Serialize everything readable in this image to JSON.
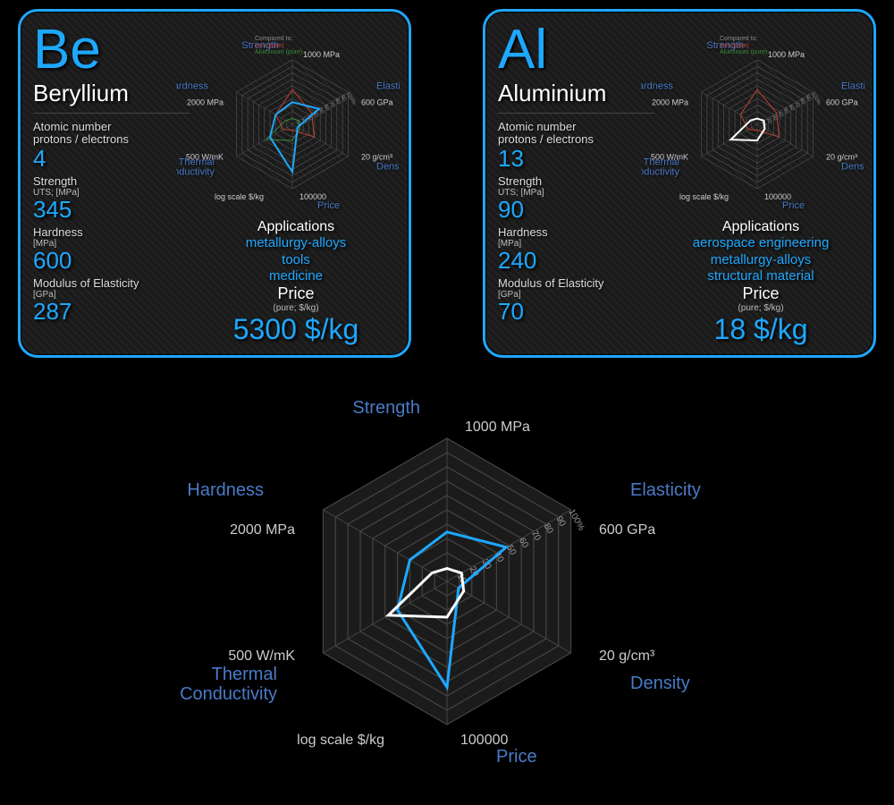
{
  "colors": {
    "accent": "#1ea8ff",
    "series_be": "#1ea8ff",
    "series_al": "#ffffff",
    "ref_iron": "#c04030",
    "ref_al": "#3a8a3a",
    "grid": "#555555",
    "grid_big": "#444444",
    "bg": "#000000"
  },
  "radar": {
    "axes": [
      "Strength",
      "Elasticity",
      "Density",
      "Price",
      "Thermal Conductivity",
      "Hardness"
    ],
    "units": [
      "1000 MPa",
      "600 GPa",
      "20 g/cm³",
      "100000",
      "500 W/mK",
      "2000 MPa"
    ],
    "unit_sub": [
      "",
      "",
      "",
      "log scale $/kg",
      "",
      ""
    ],
    "ticks": [
      "10",
      "20",
      "30",
      "40",
      "50",
      "60",
      "70",
      "80",
      "90",
      "100%"
    ],
    "rings": 10,
    "be_pct": [
      34.5,
      47.8,
      9.3,
      74,
      40,
      30
    ],
    "al_pct": [
      9,
      11.7,
      13.5,
      25,
      47.4,
      12
    ],
    "iron_pct": [
      54,
      35,
      39,
      9,
      16,
      30
    ],
    "alref_pct": [
      9,
      11.7,
      13.5,
      25,
      47.4,
      12
    ],
    "compare_title": "Compared to:",
    "compare_iron": "Iron (pure)",
    "compare_al": "Aluminium (pure)"
  },
  "left": {
    "symbol": "Be",
    "name": "Beryllium",
    "atomic_lbl1": "Atomic number",
    "atomic_lbl2": "protons / electrons",
    "atomic_val": "4",
    "strength_lbl": "Strength",
    "strength_sub": "UTS; [MPa]",
    "strength_val": "345",
    "hardness_lbl": "Hardness",
    "hardness_sub": "[MPa]",
    "hardness_val": "600",
    "modulus_lbl": "Modulus of Elasticity",
    "modulus_sub": "[GPa]",
    "modulus_val": "287",
    "apps_title": "Applications",
    "apps": "metallurgy-alloys\ntools\nmedicine",
    "price_title": "Price",
    "price_sub": "(pure; $/kg)",
    "price_val": "5300 $/kg"
  },
  "right": {
    "symbol": "Al",
    "name": "Aluminium",
    "atomic_lbl1": "Atomic number",
    "atomic_lbl2": "protons / electrons",
    "atomic_val": "13",
    "strength_lbl": "Strength",
    "strength_sub": "UTS; [MPa]",
    "strength_val": "90",
    "hardness_lbl": "Hardness",
    "hardness_sub": "[MPa]",
    "hardness_val": "240",
    "modulus_lbl": "Modulus of Elasticity",
    "modulus_sub": "[GPa]",
    "modulus_val": "70",
    "apps_title": "Applications",
    "apps": "aerospace engineering\nmetallurgy-alloys\nstructural material",
    "price_title": "Price",
    "price_sub": "(pure; $/kg)",
    "price_val": "18 $/kg"
  }
}
